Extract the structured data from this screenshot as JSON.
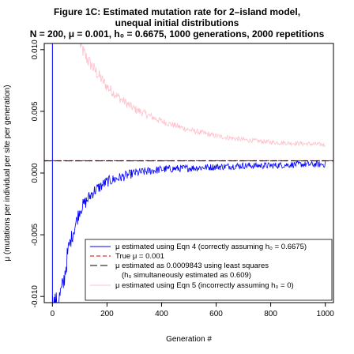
{
  "chart_data": {
    "type": "line",
    "title_line1": "Figure 1C: Estimated mutation rate for 2–island model,",
    "title_line2": "unequal initial distributions",
    "subtitle": "N = 200, μ = 0.001, h₀ = 0.6675, 1000 generations, 2000 repetitions",
    "xlabel": "Generation #",
    "ylabel": "μ (mutations per individual per site per generation)",
    "xlim": [
      -30,
      1030
    ],
    "ylim": [
      -0.0105,
      0.0105
    ],
    "x_ticks": [
      0,
      200,
      400,
      600,
      800,
      1000
    ],
    "y_ticks": [
      -0.01,
      -0.005,
      0.0,
      0.005,
      0.01
    ],
    "x_tick_labels": [
      "0",
      "200",
      "400",
      "600",
      "800",
      "1000"
    ],
    "y_tick_labels": [
      "-0.010",
      "-0.005",
      "0.000",
      "0.005",
      "0.010"
    ],
    "grid": false,
    "legend_position": "bottom-right",
    "series": [
      {
        "name": "μ estimated using Eqn 4 (correctly assuming h₀ = 0.6675)",
        "color": "#0000ff",
        "style": "solid",
        "x": [
          0,
          20,
          40,
          60,
          80,
          100,
          150,
          200,
          300,
          400,
          500,
          600,
          700,
          800,
          900,
          1000
        ],
        "values": [
          -0.0105,
          -0.0105,
          -0.009,
          -0.006,
          -0.0045,
          -0.003,
          -0.0015,
          -0.0007,
          0.0,
          0.0003,
          0.0004,
          0.0005,
          0.0006,
          0.0006,
          0.0007,
          0.0007
        ]
      },
      {
        "name": "True μ = 0.001",
        "color": "#cc0000",
        "style": "dashed",
        "x": [
          -30,
          1030
        ],
        "values": [
          0.001,
          0.001
        ]
      },
      {
        "name": "μ estimated as 0.0009843 using least squares",
        "name_line2": "(h₀ simultaneously estimated as 0.609)",
        "color": "#000000",
        "style": "longdash",
        "x": [
          -30,
          1030
        ],
        "values": [
          0.0009843,
          0.0009843
        ]
      },
      {
        "name": "μ estimated using Eqn 5 (incorrectly assuming h₀ = 0)",
        "color": "#ffc0cb",
        "style": "solid",
        "x": [
          100,
          120,
          150,
          200,
          250,
          300,
          400,
          500,
          600,
          700,
          800,
          900,
          1000
        ],
        "values": [
          0.0105,
          0.0095,
          0.0085,
          0.007,
          0.006,
          0.0052,
          0.0042,
          0.0035,
          0.003,
          0.0027,
          0.0025,
          0.0024,
          0.0023
        ]
      }
    ],
    "vertical_line": {
      "x": 0,
      "color": "#0000ff"
    }
  }
}
